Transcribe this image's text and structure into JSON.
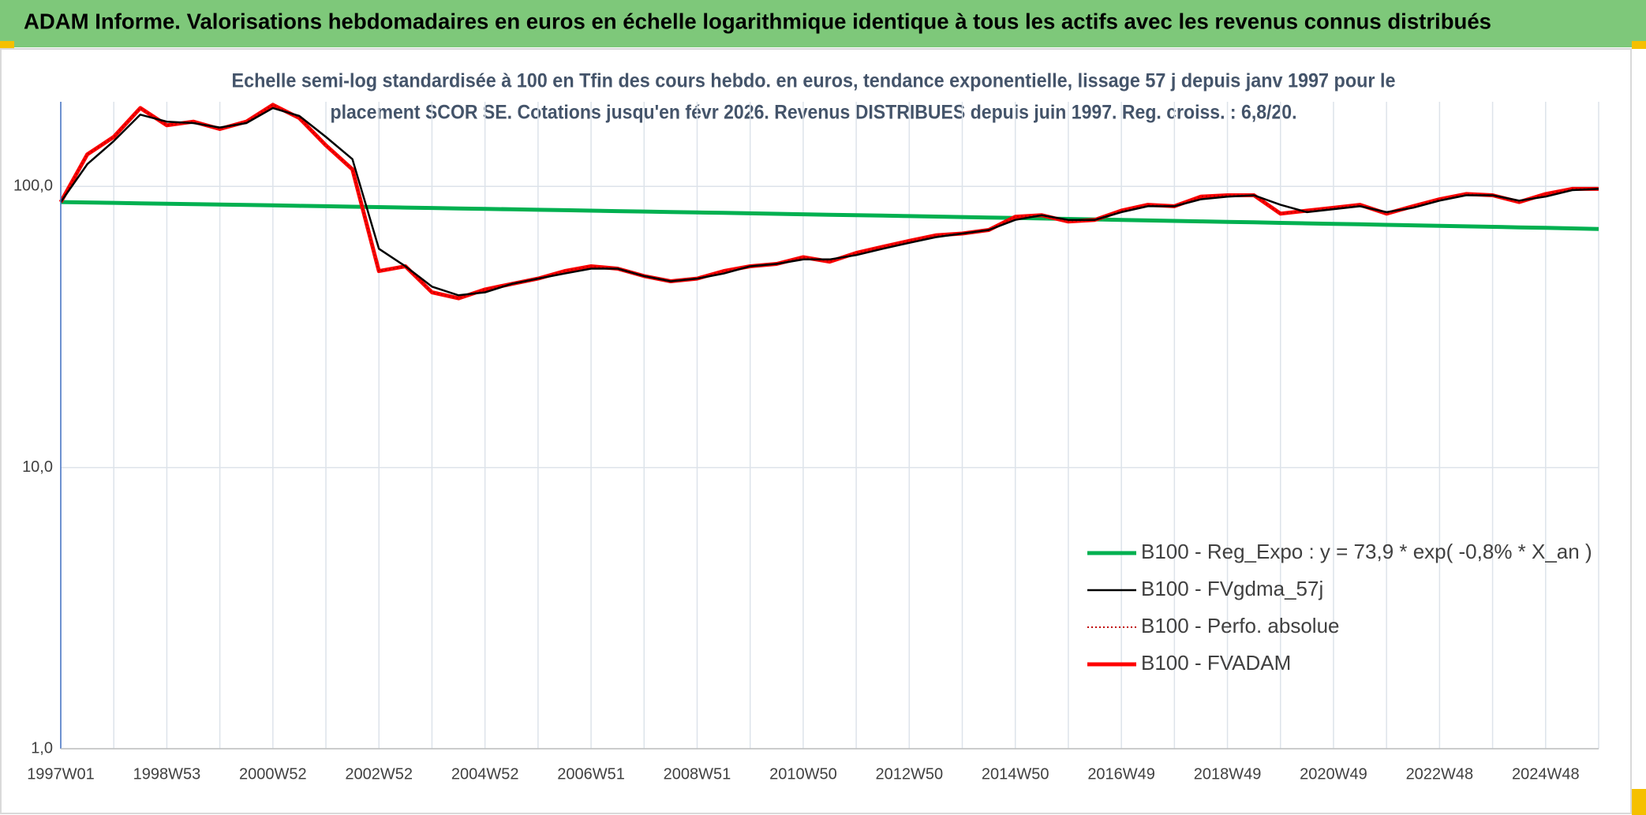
{
  "chart_data": {
    "type": "line",
    "title": "ADAM Informe. Valorisations hebdomadaires en euros en échelle logarithmique identique à tous les actifs avec les revenus connus distribués",
    "subtitle": [
      "Echelle semi-log standardisée à 100 en Tfin des cours hebdo. en euros, tendance exponentielle, lissage 57 j depuis janv 1997 pour le",
      "placement SCOR SE. Cotations jusqu'en févr 2026. Revenus DISTRIBUES depuis juin 1997. Reg. croiss. : 6,8/20."
    ],
    "log_scale": true,
    "grid": true,
    "legend": "lower right",
    "ylim": [
      1,
      200
    ],
    "yticks": [
      {
        "value": 1,
        "label": "1,0"
      },
      {
        "value": 10,
        "label": "10,0"
      },
      {
        "value": 100,
        "label": "100,0"
      }
    ],
    "categories": [
      "1997W01",
      null,
      null,
      null,
      "1998W53",
      null,
      null,
      null,
      "2000W52",
      null,
      null,
      null,
      "2002W52",
      null,
      null,
      null,
      "2004W52",
      null,
      null,
      null,
      "2006W51",
      null,
      null,
      null,
      "2008W51",
      null,
      null,
      null,
      "2010W50",
      null,
      null,
      null,
      "2012W50",
      null,
      null,
      null,
      "2014W50",
      null,
      null,
      null,
      "2016W49",
      null,
      null,
      null,
      "2018W49",
      null,
      null,
      null,
      "2020W49",
      null,
      null,
      null,
      "2022W48",
      null,
      null,
      null,
      "2024W48",
      null,
      null
    ],
    "series": [
      {
        "name": "B100 - Reg_Expo : y = 73,9 * exp( -0,8% *  X_an )",
        "color": "#00b050",
        "style": "solid",
        "values": [
          88.0,
          87.7,
          87.4,
          87.1,
          86.8,
          86.5,
          86.2,
          85.9,
          85.6,
          85.3,
          85.0,
          84.7,
          84.4,
          84.1,
          83.8,
          83.5,
          83.2,
          82.9,
          82.6,
          82.3,
          82.0,
          81.7,
          81.4,
          81.1,
          80.8,
          80.5,
          80.2,
          79.9,
          79.6,
          79.3,
          79.0,
          78.7,
          78.4,
          78.1,
          77.8,
          77.5,
          77.2,
          76.9,
          76.6,
          76.3,
          76.0,
          75.7,
          75.4,
          75.1,
          74.8,
          74.5,
          74.2,
          73.9,
          73.6,
          73.3,
          73.0,
          72.7,
          72.4,
          72.1,
          71.8,
          71.5,
          71.2,
          70.9,
          70.6
        ]
      },
      {
        "name": "B100 - FVgdma_57j",
        "color": "#000000",
        "style": "solid",
        "values": [
          88,
          120,
          145,
          180,
          170,
          168,
          162,
          168,
          190,
          178,
          150,
          125,
          60,
          52,
          44,
          41,
          42,
          45,
          47,
          49,
          51,
          51,
          48,
          46,
          47,
          49,
          52,
          53,
          55,
          55,
          57,
          60,
          63,
          66,
          68,
          70,
          76,
          79,
          76,
          76,
          81,
          85,
          85,
          90,
          92,
          93,
          86,
          81,
          83,
          85,
          81,
          84,
          89,
          93,
          93,
          89,
          92,
          97,
          98
        ]
      },
      {
        "name": "B100 - Perfo. absolue",
        "color": "#c00000",
        "style": "dotted",
        "values": [
          88,
          130,
          150,
          190,
          165,
          170,
          160,
          170,
          195,
          175,
          140,
          115,
          50,
          52,
          42,
          40,
          43,
          45,
          47,
          50,
          52,
          51,
          48,
          46,
          47,
          50,
          52,
          53,
          56,
          54,
          58,
          61,
          64,
          67,
          68,
          70,
          78,
          79,
          75,
          76,
          82,
          86,
          85,
          92,
          93,
          93,
          80,
          82,
          84,
          86,
          80,
          85,
          90,
          94,
          93,
          88,
          94,
          98,
          98
        ]
      },
      {
        "name": "B100 - FVADAM",
        "color": "#ff0000",
        "style": "thick",
        "values": [
          88,
          130,
          150,
          190,
          165,
          170,
          160,
          170,
          195,
          175,
          140,
          115,
          50,
          52,
          42,
          40,
          43,
          45,
          47,
          50,
          52,
          51,
          48,
          46,
          47,
          50,
          52,
          53,
          56,
          54,
          58,
          61,
          64,
          67,
          68,
          70,
          78,
          79,
          75,
          76,
          82,
          86,
          85,
          92,
          93,
          93,
          80,
          82,
          84,
          86,
          80,
          85,
          90,
          94,
          93,
          88,
          94,
          98,
          98
        ]
      }
    ]
  }
}
